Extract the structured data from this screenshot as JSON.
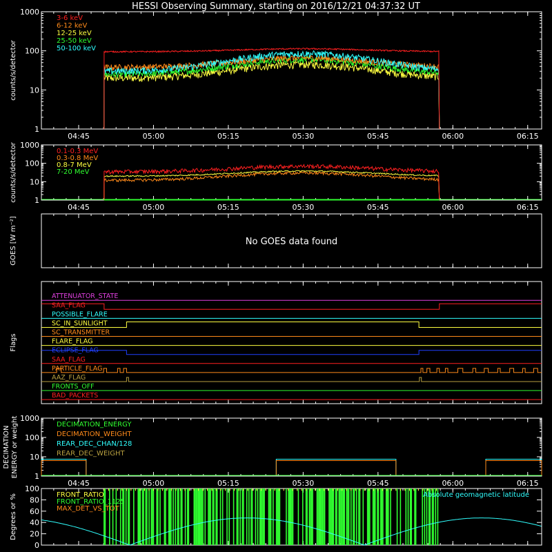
{
  "title": "HESSI Observing Summary, starting on 2016/12/21 04:37:32 UT",
  "time_ticks": [
    "04:45",
    "05:00",
    "05:15",
    "05:30",
    "05:45",
    "06:00",
    "06:15"
  ],
  "chart_data": [
    {
      "type": "line",
      "ylabel": "counts/s/detector",
      "yscale": "log",
      "ylim": [
        1,
        1000
      ],
      "ytick_labels": [
        "1",
        "10",
        "100",
        "1000"
      ],
      "series": [
        {
          "name": "3-6 keV",
          "color": "#ff2020"
        },
        {
          "name": "6-12 keV",
          "color": "#ff8a1a"
        },
        {
          "name": "12-25 keV",
          "color": "#ffff40"
        },
        {
          "name": "25-50 keV",
          "color": "#30ff30"
        },
        {
          "name": "50-100 keV",
          "color": "#30ffff"
        }
      ]
    },
    {
      "type": "line",
      "ylabel": "counts/s/detector",
      "yscale": "log",
      "ylim": [
        1,
        1000
      ],
      "ytick_labels": [
        "1",
        "10",
        "100",
        "1000"
      ],
      "series": [
        {
          "name": "0.1-0.3 MeV",
          "color": "#ff2020"
        },
        {
          "name": "0.3-0.8 MeV",
          "color": "#ff8a1a"
        },
        {
          "name": "0.8-7 MeV",
          "color": "#ffff40"
        },
        {
          "name": "7-20 MeV",
          "color": "#30ff30"
        }
      ]
    },
    {
      "type": "line",
      "ylabel": "GOES [W m⁻²]",
      "message": "No GOES data found"
    },
    {
      "type": "line",
      "ylabel": "Flags",
      "series": [
        {
          "name": "ATTENUATOR_STATE",
          "color": "#e040e0"
        },
        {
          "name": "SAA_FLAG",
          "color": "#ff2020"
        },
        {
          "name": "POSSIBLE_FLARE",
          "color": "#30ffff"
        },
        {
          "name": "SC_IN_SUNLIGHT",
          "color": "#ffff40"
        },
        {
          "name": "SC_TRANSMITTER",
          "color": "#ff8a1a"
        },
        {
          "name": "FLARE_FLAG",
          "color": "#ffff40"
        },
        {
          "name": "ECLIPSE_FLAG",
          "color": "#2040ff"
        },
        {
          "name": "SAA_FLAG",
          "color": "#ff2020"
        },
        {
          "name": "PARTICLE_FLAG",
          "color": "#ff8a1a"
        },
        {
          "name": "AAZ_FLAG",
          "color": "#b8a040"
        },
        {
          "name": "FRONTS_OFF",
          "color": "#30ff30"
        },
        {
          "name": "BAD_PACKETS",
          "color": "#ff2020"
        }
      ]
    },
    {
      "type": "line",
      "ylabel": "DECIMATION ENERGY or weight",
      "yscale": "log",
      "ylim": [
        1,
        1000
      ],
      "ytick_labels": [
        "1",
        "10",
        "100",
        "1000"
      ],
      "series": [
        {
          "name": "DECIMATION_ENERGY",
          "color": "#30ff30"
        },
        {
          "name": "DECIMATION_WEIGHT",
          "color": "#ff8a1a"
        },
        {
          "name": "REAR_DEC_CHAN/128",
          "color": "#30ffff"
        },
        {
          "name": "REAR_DEC_WEIGHT",
          "color": "#b8a040"
        }
      ]
    },
    {
      "type": "line",
      "ylabel": "Degrees or %",
      "ylim": [
        0,
        100
      ],
      "ytick_labels": [
        "0",
        "20",
        "40",
        "60",
        "80",
        "100"
      ],
      "series": [
        {
          "name": "FRONT_RATIO",
          "color": "#ffff40"
        },
        {
          "name": "FRONT_RATIO_1125",
          "color": "#30ff30"
        },
        {
          "name": "MAX_DET_VS_TOT",
          "color": "#ff8a1a"
        }
      ],
      "annotation": {
        "text": "Absolute geomagnetic latitude",
        "color": "#30ffff"
      }
    }
  ]
}
